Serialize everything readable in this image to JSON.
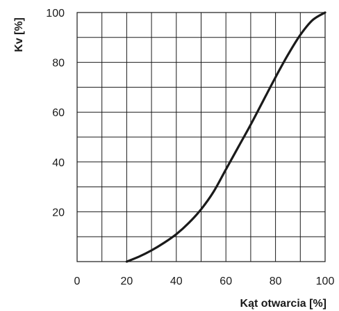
{
  "chart_data": {
    "type": "line",
    "xlabel": "Kąt otwarcia [%]",
    "ylabel": "Kv [%]",
    "xlim": [
      0,
      100
    ],
    "ylim": [
      0,
      100
    ],
    "x_ticks": [
      0,
      20,
      40,
      60,
      80,
      100
    ],
    "y_ticks": [
      20,
      40,
      60,
      80,
      100
    ],
    "x_tick_labels": [
      "0",
      "20",
      "40",
      "60",
      "80",
      "100"
    ],
    "y_tick_labels": [
      "20",
      "40",
      "60",
      "80",
      "100"
    ],
    "grid": true,
    "grid_step": 10,
    "series": [
      {
        "x": [
          20,
          25,
          30,
          35,
          40,
          45,
          50,
          55,
          60,
          65,
          70,
          75,
          80,
          85,
          90,
          95,
          100
        ],
        "y": [
          0,
          2,
          4.5,
          7.5,
          11,
          15.5,
          21,
          28,
          37,
          46,
          55,
          64.5,
          74,
          83,
          91,
          97,
          100
        ]
      }
    ],
    "line_color": "#1a1a1a"
  }
}
